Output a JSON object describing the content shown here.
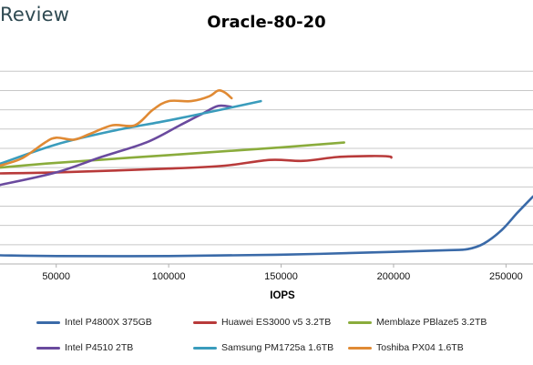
{
  "brand": {
    "label": "Review"
  },
  "chart_data": {
    "type": "line",
    "title": "Oracle-80-20",
    "xlabel": "IOPS",
    "ylabel": "",
    "xlim": [
      25000,
      262000
    ],
    "ylim": [
      0,
      11.1
    ],
    "x_ticks": [
      50000,
      100000,
      150000,
      200000,
      250000
    ],
    "x_tick_labels": [
      "50000",
      "100000",
      "150000",
      "200000",
      "250000"
    ],
    "y_grid_values": [
      1,
      2,
      3,
      4,
      5,
      6,
      7,
      8,
      9,
      10
    ],
    "grid": "horizontal",
    "legend": "bottom",
    "series": [
      {
        "name": "Intel P4800X 375GB",
        "color": "#3a6aa8",
        "points": [
          [
            25000,
            0.45
          ],
          [
            50000,
            0.41
          ],
          [
            100000,
            0.41
          ],
          [
            150000,
            0.48
          ],
          [
            200000,
            0.63
          ],
          [
            225000,
            0.72
          ],
          [
            233000,
            0.77
          ],
          [
            240000,
            1.05
          ],
          [
            248000,
            1.75
          ],
          [
            255000,
            2.65
          ],
          [
            262000,
            3.5
          ]
        ]
      },
      {
        "name": "Huawei ES3000 v5 3.2TB",
        "color": "#b83a3a",
        "points": [
          [
            25000,
            4.7
          ],
          [
            50000,
            4.75
          ],
          [
            100000,
            4.95
          ],
          [
            125000,
            5.1
          ],
          [
            145000,
            5.4
          ],
          [
            160000,
            5.35
          ],
          [
            175000,
            5.55
          ],
          [
            190000,
            5.6
          ],
          [
            198000,
            5.58
          ],
          [
            199000,
            5.52
          ]
        ]
      },
      {
        "name": "Memblaze PBlaze5 3.2TB",
        "color": "#8aac3c",
        "points": [
          [
            25000,
            5.0
          ],
          [
            50000,
            5.25
          ],
          [
            100000,
            5.65
          ],
          [
            150000,
            6.05
          ],
          [
            178000,
            6.3
          ]
        ]
      },
      {
        "name": "Intel P4510 2TB",
        "color": "#6a4a9e",
        "points": [
          [
            25000,
            4.1
          ],
          [
            50000,
            4.75
          ],
          [
            70000,
            5.55
          ],
          [
            90000,
            6.3
          ],
          [
            105000,
            7.2
          ],
          [
            115000,
            7.8
          ],
          [
            122000,
            8.2
          ],
          [
            128000,
            8.15
          ]
        ]
      },
      {
        "name": "Samsung PM1725a 1.6TB",
        "color": "#3a9cbc",
        "points": [
          [
            25000,
            5.2
          ],
          [
            50000,
            6.2
          ],
          [
            75000,
            6.9
          ],
          [
            100000,
            7.45
          ],
          [
            125000,
            8.05
          ],
          [
            141000,
            8.45
          ]
        ]
      },
      {
        "name": "Toshiba PX04 1.6TB",
        "color": "#e08a34",
        "points": [
          [
            25000,
            5.1
          ],
          [
            35000,
            5.5
          ],
          [
            45000,
            6.3
          ],
          [
            50000,
            6.55
          ],
          [
            58000,
            6.45
          ],
          [
            65000,
            6.75
          ],
          [
            75000,
            7.2
          ],
          [
            85000,
            7.2
          ],
          [
            93000,
            8.0
          ],
          [
            100000,
            8.45
          ],
          [
            110000,
            8.45
          ],
          [
            118000,
            8.7
          ],
          [
            122000,
            9.0
          ],
          [
            125000,
            8.9
          ],
          [
            128000,
            8.6
          ]
        ]
      }
    ]
  }
}
